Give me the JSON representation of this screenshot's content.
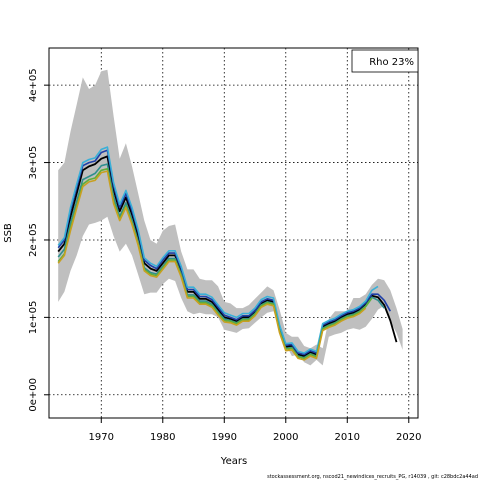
{
  "chart_data": {
    "type": "line",
    "xlabel": "Years",
    "ylabel": "SSB",
    "xlim": [
      1961.5,
      2021.5
    ],
    "ylim": [
      -30000,
      448000
    ],
    "x_ticks": [
      1970,
      1980,
      1990,
      2000,
      2010,
      2020
    ],
    "x_tick_labels": [
      "1970",
      "1980",
      "1990",
      "2000",
      "2010",
      "2020"
    ],
    "y_ticks": [
      0,
      100000,
      200000,
      300000,
      400000
    ],
    "y_tick_labels": [
      "0e+00",
      "1e+05",
      "2e+05",
      "3e+05",
      "4e+05"
    ],
    "grid": true,
    "legend_placement": "top-right",
    "annotation": "Rho 23%",
    "footer": "stockassessment.org, nscod21_newindices_recruits_PG, r14039 , git: c28bdc2a44ad",
    "band": {
      "x": [
        1963,
        1964,
        1965,
        1966,
        1967,
        1968,
        1969,
        1970,
        1971,
        1972,
        1973,
        1974,
        1975,
        1976,
        1977,
        1978,
        1979,
        1980,
        1981,
        1982,
        1983,
        1984,
        1985,
        1986,
        1987,
        1988,
        1989,
        1990,
        1991,
        1992,
        1993,
        1994,
        1995,
        1996,
        1997,
        1998,
        1999,
        2000,
        2001,
        2002,
        2003,
        2004,
        2005,
        2006,
        2007,
        2008,
        2009,
        2010,
        2011,
        2012,
        2013,
        2014,
        2015,
        2016,
        2017,
        2018,
        2019
      ],
      "lower": [
        120000,
        133000,
        160000,
        180000,
        205000,
        220000,
        222000,
        225000,
        230000,
        205000,
        185000,
        195000,
        180000,
        155000,
        130000,
        132000,
        132000,
        143000,
        150000,
        147000,
        125000,
        108000,
        104000,
        106000,
        104000,
        104000,
        100000,
        84000,
        82000,
        80000,
        85000,
        86000,
        93000,
        100000,
        106000,
        108000,
        85000,
        65000,
        50000,
        52000,
        42000,
        38000,
        45000,
        38000,
        75000,
        78000,
        80000,
        84000,
        86000,
        84000,
        88000,
        98000,
        110000,
        115000,
        95000,
        80000,
        58000
      ],
      "upper": [
        290000,
        300000,
        340000,
        375000,
        410000,
        395000,
        400000,
        418000,
        420000,
        360000,
        305000,
        325000,
        295000,
        260000,
        225000,
        200000,
        195000,
        212000,
        218000,
        220000,
        185000,
        162000,
        162000,
        150000,
        148000,
        148000,
        140000,
        120000,
        118000,
        112000,
        112000,
        116000,
        124000,
        132000,
        140000,
        135000,
        110000,
        80000,
        75000,
        75000,
        63000,
        60000,
        65000,
        60000,
        98000,
        108000,
        108000,
        108000,
        125000,
        125000,
        130000,
        142000,
        150000,
        148000,
        135000,
        112000,
        85000
      ]
    },
    "series": [
      {
        "color": "#000000",
        "values": [
          185000,
          195000,
          230000,
          260000,
          290000,
          295000,
          298000,
          305000,
          308000,
          265000,
          237000,
          255000,
          233000,
          205000,
          170000,
          163000,
          160000,
          170000,
          180000,
          180000,
          160000,
          133000,
          133000,
          124000,
          124000,
          120000,
          110000,
          100000,
          98000,
          95000,
          100000,
          100000,
          107000,
          118000,
          122000,
          120000,
          85000,
          62000,
          63000,
          52000,
          50000,
          55000,
          52000,
          88000,
          92000,
          95000,
          100000,
          104000,
          106000,
          110000,
          117000,
          128000,
          126000,
          116000,
          96000,
          68000
        ]
      },
      {
        "color": "#1f3fa8",
        "values": [
          190000,
          200000,
          238000,
          268000,
          296000,
          300000,
          302000,
          313000,
          316000,
          270000,
          242000,
          260000,
          238000,
          210000,
          174000,
          167000,
          163000,
          174000,
          183000,
          183000,
          163000,
          136000,
          136000,
          127000,
          127000,
          123000,
          113000,
          103000,
          100000,
          97000,
          102000,
          102000,
          109000,
          120000,
          124000,
          122000,
          87000,
          64000,
          65000,
          54000,
          52000,
          57000,
          54000,
          90000,
          94000,
          97000,
          102000,
          106000,
          108000,
          112000,
          119000,
          130000,
          130000,
          122000,
          108000
        ]
      },
      {
        "color": "#3ab0d8",
        "values": [
          193000,
          203000,
          242000,
          272000,
          300000,
          304000,
          306000,
          317000,
          320000,
          274000,
          246000,
          264000,
          242000,
          213000,
          177000,
          170000,
          166000,
          177000,
          186000,
          186000,
          166000,
          139000,
          139000,
          130000,
          130000,
          126000,
          116000,
          106000,
          103000,
          100000,
          105000,
          105000,
          112000,
          123000,
          127000,
          125000,
          90000,
          66000,
          67000,
          56000,
          54000,
          59000,
          56000,
          92000,
          96000,
          99000,
          104000,
          108000,
          110000,
          114000,
          121000,
          135000,
          140000
        ]
      },
      {
        "color": "#2f8f8f",
        "values": [
          178000,
          188000,
          222000,
          250000,
          278000,
          282000,
          286000,
          296000,
          298000,
          256000,
          230000,
          248000,
          226000,
          198000,
          164000,
          158000,
          156000,
          166000,
          176000,
          176000,
          156000,
          129000,
          129000,
          121000,
          121000,
          117000,
          107000,
          98000,
          96000,
          93000,
          98000,
          98000,
          105000,
          116000,
          120000,
          118000,
          83000,
          60000,
          61000,
          50000,
          48000,
          53000,
          50000,
          86000,
          90000,
          93000,
          98000,
          102000,
          104000,
          108000,
          115000,
          126000,
          122000,
          112000
        ]
      },
      {
        "color": "#5fae3a",
        "values": [
          172000,
          182000,
          215000,
          244000,
          272000,
          278000,
          280000,
          290000,
          292000,
          250000,
          227000,
          244000,
          222000,
          195000,
          162000,
          156000,
          154000,
          164000,
          174000,
          174000,
          154000,
          127000,
          127000,
          119000,
          119000,
          115000,
          105000,
          96000,
          95000,
          92000,
          97000,
          97000,
          104000,
          115000,
          119000,
          117000,
          82000,
          59000,
          60000,
          49000,
          47000,
          52000,
          49000,
          85000,
          89000,
          92000,
          97000,
          101000,
          103000,
          107000,
          114000,
          125000
        ]
      },
      {
        "color": "#c8a020",
        "values": [
          170000,
          180000,
          212000,
          241000,
          269000,
          275000,
          277000,
          287000,
          289000,
          247000,
          225000,
          242000,
          220000,
          193000,
          160000,
          154000,
          152000,
          162000,
          172000,
          172000,
          152000,
          125000,
          125000,
          117000,
          117000,
          113000,
          103000,
          94000,
          93000,
          90000,
          95000,
          95000,
          102000,
          113000,
          117000,
          115000,
          80000,
          57000,
          58000,
          47000,
          45000,
          50000,
          47000,
          83000,
          87000,
          90000,
          95000,
          99000,
          101000,
          105000,
          112000
        ]
      }
    ]
  }
}
